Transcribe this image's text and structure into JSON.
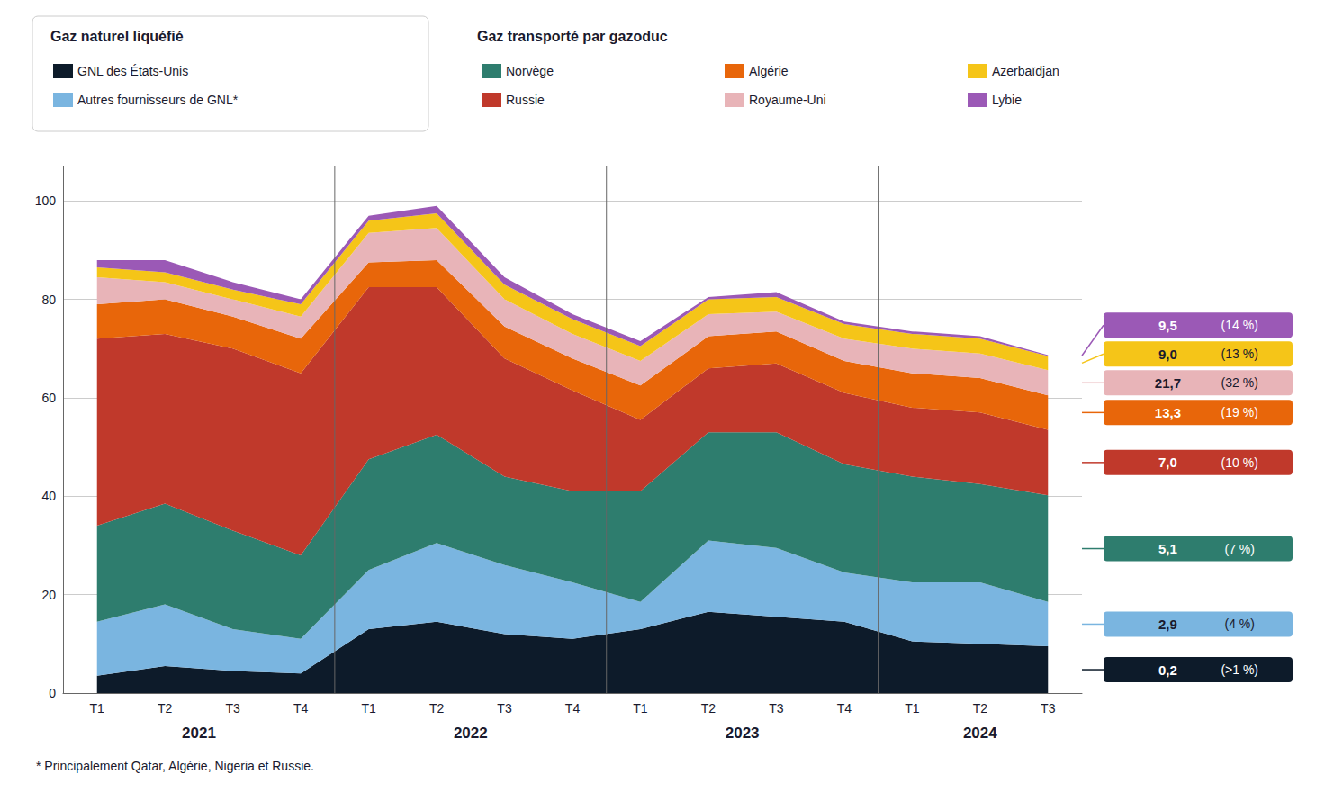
{
  "chart_data": {
    "type": "area",
    "stacked": true,
    "categories": [
      "T1",
      "T2",
      "T3",
      "T4",
      "T1",
      "T2",
      "T3",
      "T4",
      "T1",
      "T2",
      "T3",
      "T4",
      "T1",
      "T2",
      "T3"
    ],
    "category_groups": [
      {
        "label": "2021",
        "count": 4
      },
      {
        "label": "2022",
        "count": 4
      },
      {
        "label": "2023",
        "count": 4
      },
      {
        "label": "2024",
        "count": 3
      }
    ],
    "series": [
      {
        "name": "GNL des États-Unis",
        "color": "#0d1b2a",
        "values": [
          3.5,
          5.5,
          4.5,
          4.0,
          13.0,
          14.5,
          12.0,
          11.0,
          13.0,
          16.5,
          15.5,
          14.5,
          10.5,
          10.0,
          9.5
        ]
      },
      {
        "name": "Autres fournisseurs de GNL*",
        "color": "#7ab5e0",
        "values": [
          11.0,
          12.5,
          8.5,
          7.0,
          12.0,
          16.0,
          14.0,
          11.5,
          5.5,
          14.5,
          14.0,
          10.0,
          12.0,
          12.5,
          9.0
        ]
      },
      {
        "name": "Norvège",
        "color": "#2e7d6e",
        "values": [
          19.5,
          20.5,
          20.0,
          17.0,
          22.5,
          22.0,
          18.0,
          18.5,
          22.5,
          22.0,
          23.5,
          22.0,
          21.5,
          20.0,
          21.7
        ]
      },
      {
        "name": "Russie",
        "color": "#c0392b",
        "values": [
          38.0,
          34.5,
          37.0,
          37.0,
          35.0,
          30.0,
          24.0,
          20.5,
          14.5,
          13.0,
          14.0,
          14.5,
          14.0,
          14.5,
          13.3
        ]
      },
      {
        "name": "Algérie",
        "color": "#e8660a",
        "values": [
          7.0,
          7.0,
          6.5,
          7.0,
          5.0,
          5.5,
          6.5,
          6.5,
          7.0,
          6.5,
          6.5,
          6.5,
          7.0,
          7.0,
          7.0
        ]
      },
      {
        "name": "Royaume-Uni",
        "color": "#e8b4b8",
        "values": [
          5.5,
          3.5,
          3.5,
          4.5,
          6.0,
          6.5,
          5.5,
          5.0,
          5.0,
          4.5,
          4.0,
          4.5,
          5.0,
          5.0,
          5.1
        ]
      },
      {
        "name": "Azerbaïdjan",
        "color": "#f5c518",
        "values": [
          2.0,
          2.0,
          2.0,
          2.5,
          2.5,
          3.0,
          3.0,
          3.0,
          3.0,
          3.0,
          3.0,
          3.0,
          3.0,
          3.0,
          2.9
        ]
      },
      {
        "name": "Lybie",
        "color": "#9b59b6",
        "values": [
          1.5,
          2.5,
          1.5,
          1.0,
          1.0,
          1.5,
          1.5,
          1.0,
          1.0,
          0.5,
          1.0,
          0.5,
          0.5,
          0.5,
          0.2
        ]
      }
    ],
    "ylim": [
      0,
      107
    ],
    "yticks": [
      0,
      20,
      40,
      60,
      80,
      100
    ],
    "grid": true,
    "legend": "top",
    "legend_groups": [
      {
        "title": "Gaz naturel liquéfié",
        "series": [
          "GNL des États-Unis",
          "Autres fournisseurs de GNL*"
        ]
      },
      {
        "title": "Gaz transporté par gazoduc",
        "series": [
          "Norvège",
          "Russie",
          "Algérie",
          "Royaume-Uni",
          "Azerbaïdjan",
          "Lybie"
        ]
      }
    ],
    "annotations": [
      {
        "text": "0,2",
        "note": "(>1 %)"
      },
      {
        "text": "2,9",
        "note": "(4 %)"
      },
      {
        "text": "5,1",
        "note": "(7 %)"
      },
      {
        "text": "7,0",
        "note": "(10 %)"
      },
      {
        "text": "13,3",
        "note": "(19 %)"
      },
      {
        "text": "21,7",
        "note": "(32 %)"
      },
      {
        "text": "9,0",
        "note": "(13 %)"
      },
      {
        "text": "9,5",
        "note": "(14 %)"
      }
    ],
    "footnote": "* Principalement Qatar, Algérie, Nigeria et Russie."
  }
}
